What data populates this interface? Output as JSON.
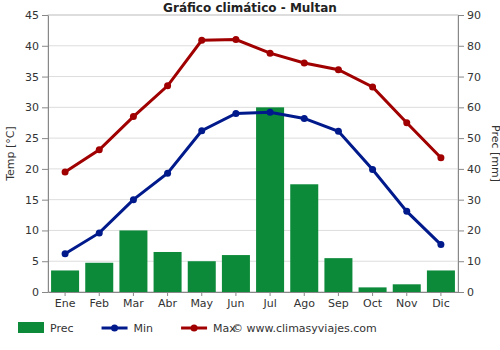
{
  "chart_data": {
    "type": "bar_line",
    "title": "Gráfico climático - Multan",
    "ylabel": "Temp [°C]",
    "y2label": "Prec [mm]",
    "categories": [
      "Ene",
      "Feb",
      "Mar",
      "Abr",
      "May",
      "Jun",
      "Jul",
      "Ago",
      "Sep",
      "Oct",
      "Nov",
      "Dic"
    ],
    "series": [
      {
        "name": "Prec",
        "type": "bar",
        "axis": "y2",
        "color": "#0c8a3a",
        "values": [
          7,
          9.5,
          20,
          13,
          10,
          12,
          60,
          35,
          11,
          1.5,
          2.5,
          7
        ]
      },
      {
        "name": "Min",
        "type": "line",
        "color": "#001a8c",
        "marker": "circle",
        "values": [
          6.2,
          9.6,
          15,
          19.3,
          26.2,
          29,
          29.2,
          28.2,
          26.1,
          19.9,
          13.1,
          7.7
        ]
      },
      {
        "name": "Max",
        "type": "line",
        "color": "#a00000",
        "marker": "circle",
        "values": [
          19.5,
          23.1,
          28.5,
          33.5,
          40.9,
          41,
          38.8,
          37.2,
          36.1,
          33.3,
          27.5,
          21.8
        ]
      }
    ],
    "ylim": [
      0,
      45
    ],
    "yticks": [
      0,
      5,
      10,
      15,
      20,
      25,
      30,
      35,
      40,
      45
    ],
    "y2lim": [
      0,
      90
    ],
    "y2ticks": [
      0,
      10,
      20,
      30,
      40,
      50,
      60,
      70,
      80,
      90
    ],
    "grid": true,
    "legend": "bottom",
    "annotations": [
      "© www.climasyviajes.com"
    ]
  }
}
